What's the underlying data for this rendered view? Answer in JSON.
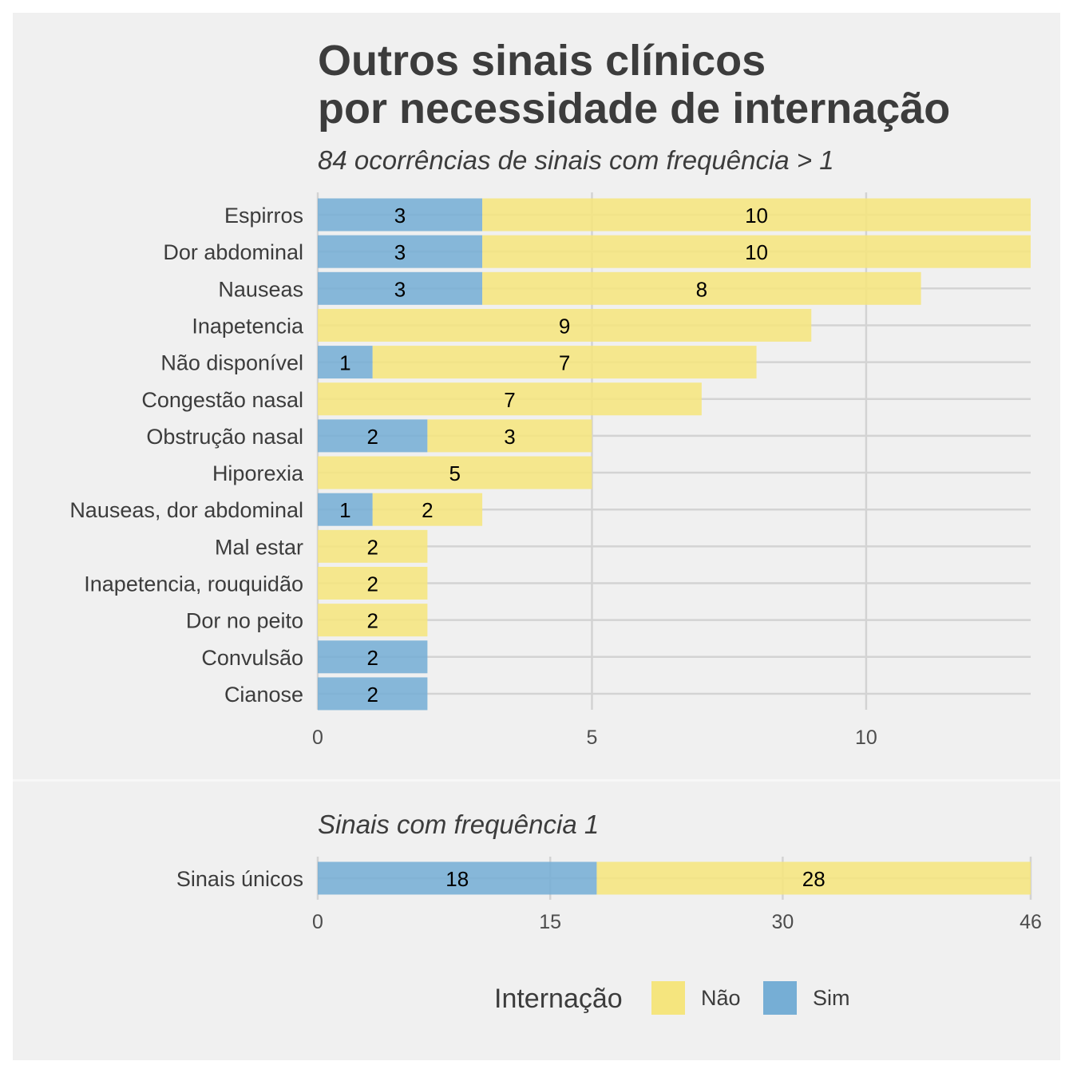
{
  "chart_data": [
    {
      "type": "bar",
      "orientation": "horizontal",
      "stacked": true,
      "title": "Outros sinais clínicos\npor necessidade de internação",
      "subtitle": "84 ocorrências de sinais com frequência > 1",
      "categories": [
        "Espirros",
        "Dor abdominal",
        "Nauseas",
        "Inapetencia",
        "Não disponível",
        "Congestão nasal",
        "Obstrução nasal",
        "Hiporexia",
        "Nauseas, dor abdominal",
        "Mal estar",
        "Inapetencia, rouquidão",
        "Dor no peito",
        "Convulsão",
        "Cianose"
      ],
      "series": [
        {
          "name": "Sim",
          "color": "#76aed5",
          "values": [
            3,
            3,
            3,
            0,
            1,
            0,
            2,
            0,
            1,
            0,
            0,
            0,
            2,
            2
          ]
        },
        {
          "name": "Não",
          "color": "#f5e57e",
          "values": [
            10,
            10,
            8,
            9,
            7,
            7,
            3,
            5,
            2,
            2,
            2,
            2,
            0,
            0
          ]
        }
      ],
      "xlim": [
        0,
        13
      ],
      "xticks": [
        0,
        5,
        10
      ],
      "grid": true
    },
    {
      "type": "bar",
      "orientation": "horizontal",
      "stacked": true,
      "subtitle": "Sinais com frequência 1",
      "categories": [
        "Sinais únicos"
      ],
      "series": [
        {
          "name": "Sim",
          "color": "#76aed5",
          "values": [
            18
          ]
        },
        {
          "name": "Não",
          "color": "#f5e57e",
          "values": [
            28
          ]
        }
      ],
      "xlim": [
        0,
        46
      ],
      "xticks": [
        0,
        15,
        30,
        46
      ],
      "grid": true
    }
  ],
  "legend": {
    "title": "Internação",
    "position": "bottom",
    "items": [
      {
        "label": "Não",
        "color": "#f5e57e"
      },
      {
        "label": "Sim",
        "color": "#76aed5"
      }
    ]
  },
  "colors": {
    "panel_bg": "#f0f0f0",
    "grid": "#d3d3d3",
    "divider": "#f7f7f7"
  }
}
